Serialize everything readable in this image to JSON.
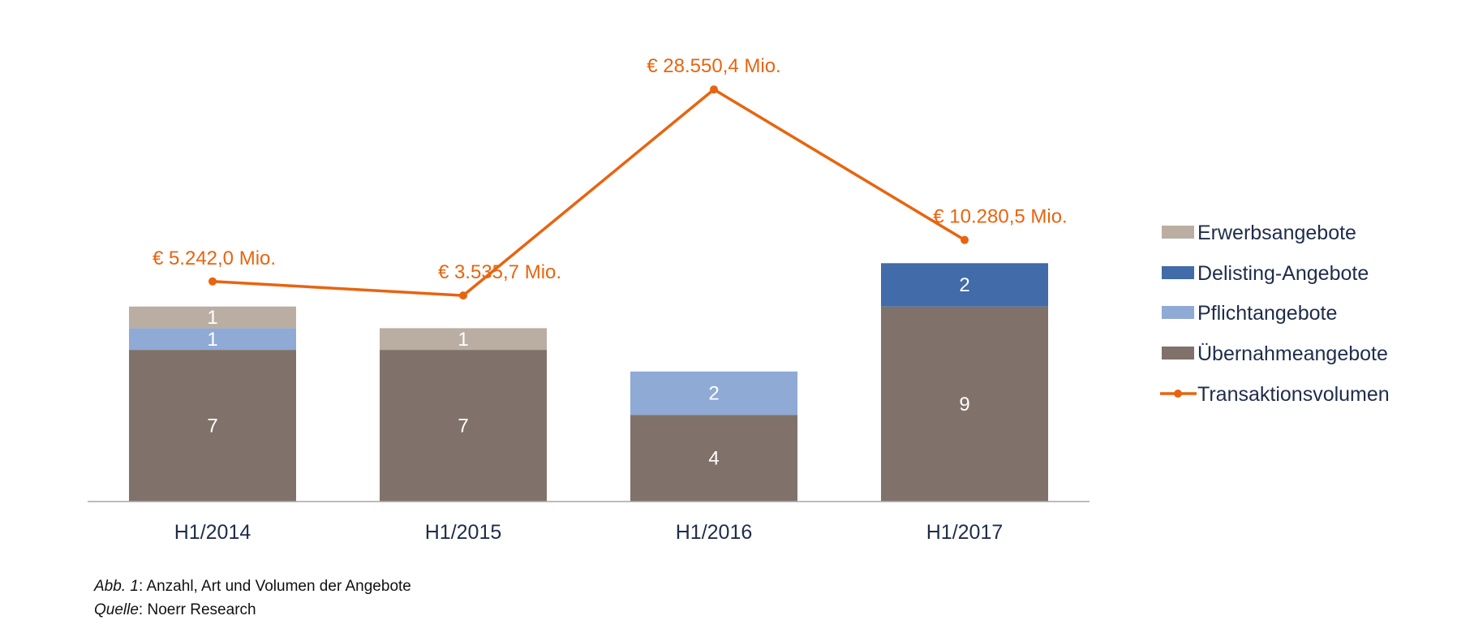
{
  "chart_data": {
    "type": "bar",
    "categories": [
      "H1/2014",
      "H1/2015",
      "H1/2016",
      "H1/2017"
    ],
    "series": [
      {
        "name": "Übernahmeangebote",
        "values": [
          7,
          7,
          4,
          9
        ],
        "color": "#80726A"
      },
      {
        "name": "Pflichtangebote",
        "values": [
          1,
          0,
          2,
          0
        ],
        "color": "#8EAAD5"
      },
      {
        "name": "Delisting-Angebote",
        "values": [
          0,
          0,
          0,
          2
        ],
        "color": "#416BA9"
      },
      {
        "name": "Erwerbsangebote",
        "values": [
          1,
          1,
          0,
          0
        ],
        "color": "#BAAEA2"
      }
    ],
    "line": {
      "name": "Transaktionsvolumen",
      "values": [
        5242.0,
        3535.7,
        28550.4,
        10280.5
      ],
      "labels": [
        "€ 5.242,0 Mio.",
        "€ 3.535,7 Mio.",
        "€ 28.550,4 Mio.",
        "€ 10.280,5 Mio."
      ],
      "color": "#E8640F"
    },
    "legend_order": [
      "Erwerbsangebote",
      "Delisting-Angebote",
      "Pflichtangebote",
      "Übernahmeangebote",
      "Transaktionsvolumen"
    ],
    "legend_position": "right",
    "stacked": true,
    "grid": false,
    "value_label_color": "#FFFFFF",
    "axis_color": "#A6A6A6",
    "tick_color": "#1F2D4A"
  },
  "caption": {
    "fig_label": "Abb. 1",
    "fig_text": ": Anzahl, Art und Volumen der Angebote",
    "source_label": "Quelle",
    "source_text": ": Noerr Research"
  }
}
